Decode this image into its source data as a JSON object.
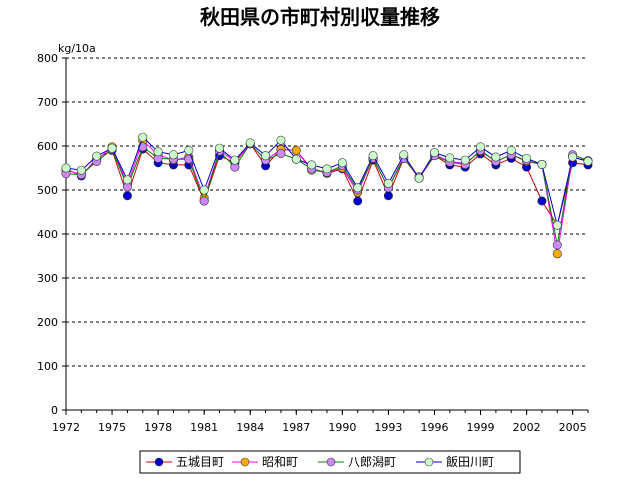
{
  "chart_data": {
    "type": "line",
    "title": "秋田県の市町村別収量推移",
    "ylabel": "kg/10a",
    "xlabel": "",
    "ylim": [
      0,
      800
    ],
    "yticks": [
      0,
      100,
      200,
      300,
      400,
      500,
      600,
      700,
      800
    ],
    "xlim": [
      1972,
      2006
    ],
    "xticks": [
      1972,
      1975,
      1978,
      1981,
      1984,
      1987,
      1990,
      1993,
      1996,
      1999,
      2002,
      2005
    ],
    "grid": "horizontal-dashed",
    "legend": "bottom",
    "x": [
      1972,
      1973,
      1974,
      1975,
      1976,
      1977,
      1978,
      1979,
      1980,
      1981,
      1982,
      1983,
      1984,
      1985,
      1986,
      1987,
      1988,
      1989,
      1990,
      1991,
      1992,
      1993,
      1994,
      1995,
      1996,
      1997,
      1998,
      1999,
      2000,
      2001,
      2002,
      2003,
      2004,
      2005,
      2006
    ],
    "series": [
      {
        "name": "五城目町",
        "line_color": "#cc0000",
        "marker_color": "#0000cc",
        "values": [
          548,
          532,
          572,
          590,
          487,
          593,
          562,
          557,
          557,
          475,
          578,
          562,
          605,
          555,
          593,
          590,
          548,
          538,
          548,
          475,
          568,
          487,
          572,
          527,
          578,
          557,
          552,
          582,
          557,
          572,
          552,
          475,
          420,
          562,
          557
        ]
      },
      {
        "name": "昭和町",
        "line_color": "#ff00ff",
        "marker_color": "#ffaa00",
        "values": [
          545,
          535,
          568,
          598,
          512,
          612,
          580,
          568,
          575,
          482,
          590,
          565,
          605,
          568,
          592,
          590,
          545,
          540,
          550,
          495,
          572,
          505,
          575,
          527,
          580,
          565,
          560,
          588,
          565,
          580,
          565,
          558,
          355,
          575,
          565
        ]
      },
      {
        "name": "八郎潟町",
        "line_color": "#008000",
        "marker_color": "#cc88ff",
        "values": [
          537,
          535,
          565,
          592,
          507,
          598,
          572,
          570,
          570,
          475,
          588,
          552,
          605,
          568,
          583,
          570,
          548,
          540,
          555,
          500,
          572,
          505,
          572,
          530,
          578,
          563,
          558,
          590,
          565,
          580,
          567,
          558,
          375,
          580,
          567
        ]
      },
      {
        "name": "飯田川町",
        "line_color": "#0000cc",
        "marker_color": "#ccffcc",
        "values": [
          550,
          545,
          577,
          595,
          523,
          620,
          587,
          580,
          590,
          500,
          595,
          568,
          607,
          578,
          613,
          570,
          557,
          548,
          562,
          505,
          578,
          515,
          580,
          527,
          585,
          573,
          568,
          598,
          575,
          590,
          572,
          558,
          420,
          575,
          565
        ]
      }
    ]
  }
}
